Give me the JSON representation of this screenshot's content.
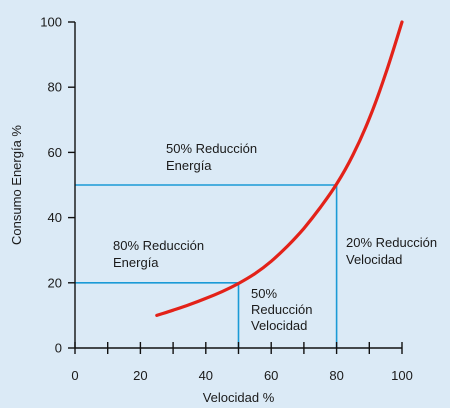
{
  "chart_data": {
    "type": "line",
    "title": "",
    "xlabel": "Velocidad %",
    "ylabel": "Consumo Energía %",
    "xlim": [
      0,
      100
    ],
    "ylim": [
      0,
      100
    ],
    "x_ticks": [
      0,
      20,
      40,
      60,
      80,
      100
    ],
    "x_minor_ticks": [
      10,
      30,
      50,
      70,
      90
    ],
    "y_ticks": [
      0,
      20,
      40,
      60,
      80,
      100
    ],
    "grid": false,
    "series": [
      {
        "color": "#e32219",
        "x": [
          25,
          30,
          35,
          40,
          45,
          50,
          55,
          60,
          65,
          70,
          75,
          80,
          85,
          90,
          95,
          100
        ],
        "y": [
          10,
          11.6,
          13.3,
          15.2,
          17.3,
          19.8,
          22.8,
          26.6,
          31.3,
          36.7,
          43.1,
          50.3,
          59.2,
          70.4,
          84.1,
          100
        ]
      }
    ],
    "reference_lines": [
      {
        "x": 50,
        "y": 20,
        "color": "#1a9ad6"
      },
      {
        "x": 80,
        "y": 50,
        "color": "#1a9ad6"
      }
    ],
    "annotations": [
      {
        "lines": [
          "50% Reducción",
          "Energía"
        ]
      },
      {
        "lines": [
          "80% Reducción",
          "Energía"
        ]
      },
      {
        "lines": [
          "50%",
          "Reducción",
          "Velocidad"
        ]
      },
      {
        "lines": [
          "20% Reducción",
          "Velocidad"
        ]
      }
    ]
  }
}
